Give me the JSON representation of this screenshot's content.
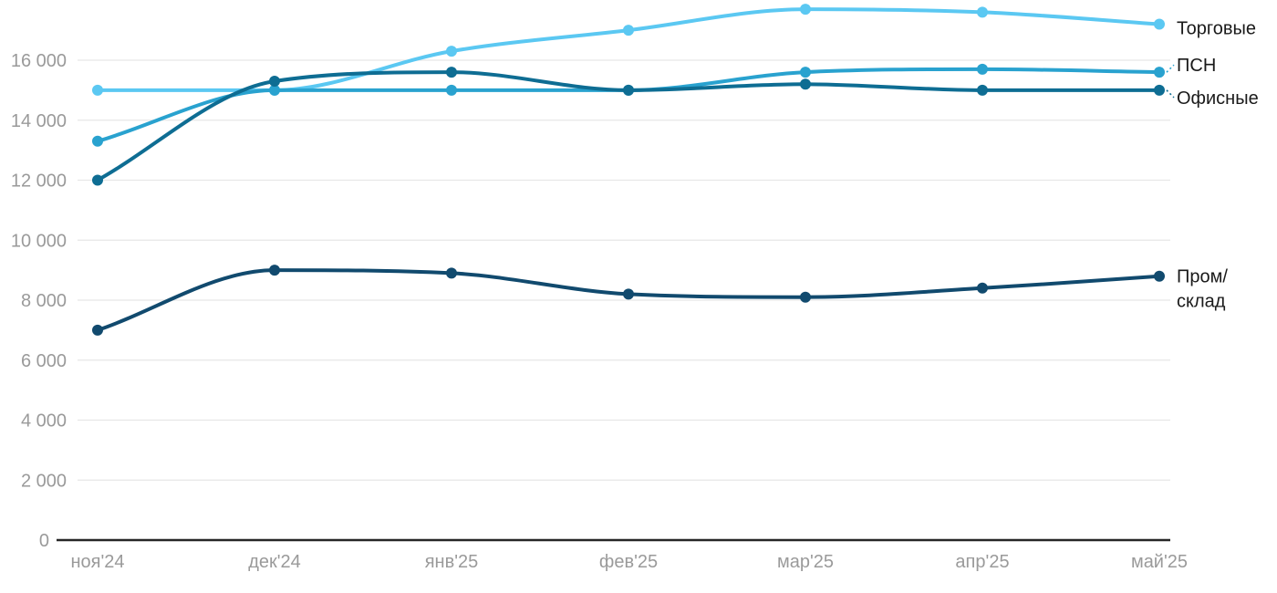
{
  "chart_data": {
    "type": "line",
    "title": "",
    "xlabel": "",
    "ylabel": "",
    "x_labels": [
      "ноя'24",
      "дек'24",
      "янв'25",
      "фев'25",
      "мар'25",
      "апр'25",
      "май'25"
    ],
    "ylim": [
      0,
      18000
    ],
    "grid": true,
    "legend_position": "right",
    "y_ticks": [
      {
        "value": 0,
        "label": "0"
      },
      {
        "value": 2000,
        "label": "2 000"
      },
      {
        "value": 4000,
        "label": "4 000"
      },
      {
        "value": 6000,
        "label": "6 000"
      },
      {
        "value": 8000,
        "label": "8 000"
      },
      {
        "value": 10000,
        "label": "10 000"
      },
      {
        "value": 12000,
        "label": "12 000"
      },
      {
        "value": 14000,
        "label": "14 000"
      },
      {
        "value": 16000,
        "label": "16 000"
      }
    ],
    "series": [
      {
        "id": "torgovye",
        "name": "Торговые",
        "color": "#5BC8F2",
        "values": [
          15000,
          15000,
          16300,
          17000,
          17700,
          17600,
          17200
        ]
      },
      {
        "id": "psn",
        "name": "ПСН",
        "color": "#29A2CF",
        "values": [
          13300,
          15000,
          15000,
          15000,
          15600,
          15700,
          15600
        ]
      },
      {
        "id": "ofisnye",
        "name": "Офисные",
        "color": "#0E6D93",
        "values": [
          12000,
          15300,
          15600,
          15000,
          15200,
          15000,
          15000
        ]
      },
      {
        "id": "prom-sklad",
        "name": "Пром/склад",
        "color": "#114A6E",
        "values": [
          7000,
          9000,
          8900,
          8200,
          8100,
          8400,
          8800
        ]
      }
    ],
    "legend": [
      {
        "series_id": "torgovye",
        "lines": [
          "Торговые"
        ],
        "dy": 4,
        "leader": false
      },
      {
        "series_id": "psn",
        "lines": [
          "ПСН"
        ],
        "dy": -8,
        "leader": true
      },
      {
        "series_id": "ofisnye",
        "lines": [
          "Офисные"
        ],
        "dy": 8,
        "leader": true
      },
      {
        "series_id": "prom-sklad",
        "lines": [
          "Пром/",
          "склад"
        ],
        "dy": 0,
        "leader": false
      }
    ]
  },
  "colors": {
    "background": "#FFFFFF",
    "grid": "#E7E7E7",
    "axis": "#262626",
    "tick_text": "#9A9A9A",
    "legend_text": "#1A1A1A"
  }
}
